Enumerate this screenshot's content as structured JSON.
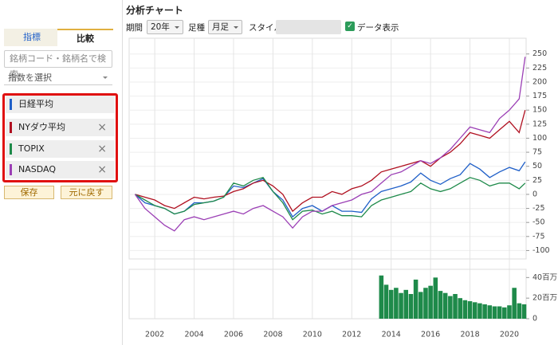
{
  "ui": {
    "tabs": [
      "指標",
      "比較"
    ],
    "search_placeholder": "銘柄コード・銘柄名で検索",
    "index_select": "指数を選択",
    "buttons": [
      "保存",
      "元に戻す"
    ],
    "title": "分析チャート",
    "toolbar": {
      "period_label": "期間",
      "period_value": "20年",
      "type_label": "足種",
      "type_value": "月足",
      "style_label": "スタイル",
      "data_display": "データ表示"
    }
  },
  "chart_data": [
    {
      "type": "line",
      "x": [
        2001,
        2001.5,
        2002,
        2002.5,
        2003,
        2003.5,
        2004,
        2004.5,
        2005,
        2005.5,
        2006,
        2006.5,
        2007,
        2007.5,
        2008,
        2008.5,
        2009,
        2009.5,
        2010,
        2010.5,
        2011,
        2011.5,
        2012,
        2012.5,
        2013,
        2013.5,
        2014,
        2014.5,
        2015,
        2015.5,
        2016,
        2016.5,
        2017,
        2017.5,
        2018,
        2018.5,
        2019,
        2019.5,
        2020,
        2020.5,
        2020.8
      ],
      "series": [
        {
          "name": "日経平均",
          "color": "#1f5fc8",
          "values": [
            0,
            -15,
            -20,
            -25,
            -35,
            -30,
            -15,
            -15,
            -12,
            -5,
            15,
            12,
            20,
            28,
            5,
            -10,
            -40,
            -25,
            -20,
            -30,
            -20,
            -30,
            -30,
            -32,
            -8,
            5,
            10,
            15,
            22,
            38,
            25,
            18,
            28,
            35,
            55,
            45,
            30,
            40,
            48,
            42,
            58
          ]
        },
        {
          "name": "NYダウ平均",
          "color": "#b01020",
          "values": [
            0,
            -5,
            -10,
            -20,
            -25,
            -15,
            -5,
            -8,
            -5,
            -3,
            5,
            10,
            20,
            25,
            15,
            0,
            -30,
            -15,
            -5,
            -5,
            5,
            0,
            10,
            15,
            25,
            40,
            45,
            50,
            55,
            60,
            50,
            65,
            75,
            90,
            110,
            105,
            100,
            115,
            130,
            110,
            150
          ]
        },
        {
          "name": "TOPIX",
          "color": "#1e8a4a",
          "values": [
            0,
            -10,
            -20,
            -25,
            -35,
            -30,
            -18,
            -15,
            -12,
            -5,
            20,
            15,
            25,
            30,
            5,
            -15,
            -45,
            -30,
            -28,
            -35,
            -30,
            -38,
            -38,
            -40,
            -20,
            -10,
            -5,
            0,
            5,
            20,
            10,
            5,
            10,
            20,
            30,
            25,
            15,
            20,
            20,
            10,
            20
          ]
        },
        {
          "name": "NASDAQ",
          "color": "#9b3fb5",
          "values": [
            0,
            -25,
            -40,
            -55,
            -65,
            -45,
            -40,
            -45,
            -40,
            -35,
            -30,
            -35,
            -25,
            -20,
            -30,
            -40,
            -60,
            -40,
            -30,
            -30,
            -20,
            -15,
            -10,
            0,
            5,
            20,
            35,
            40,
            50,
            60,
            55,
            65,
            80,
            100,
            120,
            115,
            110,
            135,
            150,
            170,
            245
          ]
        }
      ],
      "xlim": [
        2000.7,
        2020.85
      ],
      "xticks": [
        2002,
        2004,
        2006,
        2008,
        2010,
        2012,
        2014,
        2016,
        2018,
        2020
      ],
      "ylim": [
        -115,
        278
      ],
      "yticks": [
        -100,
        -75,
        -50,
        -25,
        0,
        25,
        50,
        75,
        100,
        125,
        150,
        175,
        200,
        225,
        250
      ],
      "grid": true
    },
    {
      "type": "bar",
      "color": "#1e8a4a",
      "x": [
        2013.5,
        2013.75,
        2014,
        2014.25,
        2014.5,
        2014.75,
        2015,
        2015.25,
        2015.5,
        2015.75,
        2016,
        2016.25,
        2016.5,
        2016.75,
        2017,
        2017.25,
        2017.5,
        2017.75,
        2018,
        2018.25,
        2018.5,
        2018.75,
        2019,
        2019.25,
        2019.5,
        2019.75,
        2020,
        2020.25,
        2020.5,
        2020.75
      ],
      "values": [
        42,
        33,
        28,
        30,
        25,
        28,
        24,
        38,
        26,
        30,
        32,
        40,
        27,
        25,
        22,
        24,
        20,
        18,
        17,
        16,
        15,
        14,
        13,
        12,
        12,
        11,
        13,
        30,
        15,
        14
      ],
      "xlim": [
        2000.7,
        2020.85
      ],
      "ylim": [
        0,
        48
      ],
      "yticks": [
        0,
        {
          "value": 20,
          "label": "20百万"
        },
        {
          "value": 40,
          "label": "40百万"
        }
      ]
    }
  ]
}
